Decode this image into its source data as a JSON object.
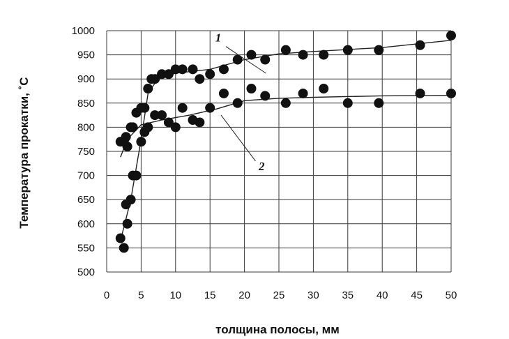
{
  "chart_data": {
    "type": "scatter",
    "title": "",
    "xlabel": "толщина полосы, мм",
    "ylabel": "Температура прокатки, ˚С",
    "xlim": [
      0,
      50
    ],
    "ylim": [
      500,
      1000
    ],
    "x_ticks": [
      "0",
      "5",
      "10",
      "15",
      "20",
      "25",
      "30",
      "35",
      "40",
      "45",
      "50"
    ],
    "y_ticks": [
      "500",
      "550",
      "600",
      "650",
      "700",
      "750",
      "800",
      "850",
      "900",
      "950",
      "1000"
    ],
    "grid": true,
    "series": [
      {
        "name": "1",
        "points": [
          [
            2,
            570
          ],
          [
            2.5,
            550
          ],
          [
            2.8,
            640
          ],
          [
            3,
            600
          ],
          [
            3.5,
            650
          ],
          [
            3.8,
            700
          ],
          [
            4.3,
            700
          ],
          [
            5,
            770
          ],
          [
            5.5,
            840
          ],
          [
            6,
            880
          ],
          [
            6.5,
            900
          ],
          [
            7,
            900
          ],
          [
            8,
            910
          ],
          [
            9,
            910
          ],
          [
            10,
            920
          ],
          [
            11,
            920
          ],
          [
            12.5,
            920
          ],
          [
            13.5,
            900
          ],
          [
            15,
            910
          ],
          [
            17,
            920
          ],
          [
            19,
            940
          ],
          [
            21,
            950
          ],
          [
            23,
            940
          ],
          [
            26,
            960
          ],
          [
            28.5,
            950
          ],
          [
            31.5,
            950
          ],
          [
            35,
            960
          ],
          [
            39.5,
            960
          ],
          [
            45.5,
            970
          ],
          [
            50,
            990
          ]
        ],
        "fit": [
          [
            2,
            565
          ],
          [
            3.5,
            650
          ],
          [
            5,
            775
          ],
          [
            6,
            870
          ],
          [
            7.5,
            902
          ],
          [
            10,
            912
          ],
          [
            15,
            920
          ],
          [
            20,
            940
          ],
          [
            25,
            952
          ],
          [
            30,
            957
          ],
          [
            40,
            965
          ],
          [
            50,
            980
          ]
        ]
      },
      {
        "name": "2",
        "points": [
          [
            2,
            770
          ],
          [
            2.5,
            770
          ],
          [
            2.8,
            780
          ],
          [
            3,
            760
          ],
          [
            3.5,
            800
          ],
          [
            3.8,
            800
          ],
          [
            4.3,
            830
          ],
          [
            5,
            840
          ],
          [
            5.5,
            790
          ],
          [
            6,
            800
          ],
          [
            7,
            825
          ],
          [
            8,
            825
          ],
          [
            9,
            810
          ],
          [
            10,
            800
          ],
          [
            11,
            840
          ],
          [
            12.5,
            815
          ],
          [
            13.5,
            810
          ],
          [
            15,
            840
          ],
          [
            17,
            870
          ],
          [
            19,
            850
          ],
          [
            21,
            880
          ],
          [
            23,
            865
          ],
          [
            26,
            850
          ],
          [
            28.5,
            870
          ],
          [
            31.5,
            880
          ],
          [
            35,
            850
          ],
          [
            39.5,
            850
          ],
          [
            45.5,
            870
          ],
          [
            50,
            870
          ]
        ],
        "fit": [
          [
            2,
            738
          ],
          [
            3,
            775
          ],
          [
            5,
            805
          ],
          [
            8,
            815
          ],
          [
            12,
            825
          ],
          [
            16,
            838
          ],
          [
            20,
            855
          ],
          [
            25,
            860
          ],
          [
            30,
            862
          ],
          [
            40,
            865
          ],
          [
            50,
            866
          ]
        ]
      }
    ],
    "annotations": [
      "1",
      "2"
    ]
  }
}
